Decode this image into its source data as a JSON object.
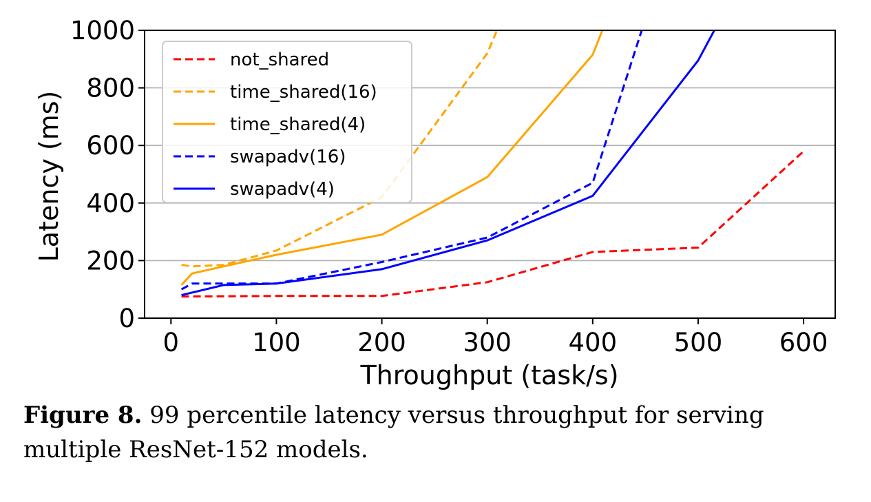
{
  "chart_data": {
    "type": "line",
    "xlabel": "Throughput (task/s)",
    "ylabel": "Latency (ms)",
    "xlim": [
      -25,
      630
    ],
    "ylim": [
      0,
      1000
    ],
    "xticks": [
      0,
      100,
      200,
      300,
      400,
      500,
      600
    ],
    "yticks": [
      0,
      200,
      400,
      600,
      800,
      1000
    ],
    "grid": "horizontal",
    "legend_position": "top-left",
    "series": [
      {
        "name": "not_shared",
        "color": "#ff0000",
        "dashed": true,
        "x": [
          10,
          100,
          200,
          300,
          400,
          500,
          600
        ],
        "y": [
          75,
          77,
          77,
          125,
          230,
          245,
          580
        ]
      },
      {
        "name": "time_shared(16)",
        "color": "#ffa500",
        "dashed": true,
        "x": [
          10,
          20,
          50,
          100,
          200,
          300,
          315
        ],
        "y": [
          185,
          180,
          185,
          235,
          420,
          920,
          1050
        ]
      },
      {
        "name": "time_shared(4)",
        "color": "#ffa500",
        "dashed": false,
        "x": [
          10,
          20,
          50,
          100,
          200,
          300,
          400,
          420
        ],
        "y": [
          115,
          155,
          180,
          220,
          290,
          490,
          915,
          1100
        ]
      },
      {
        "name": "swapadv(16)",
        "color": "#0000ff",
        "dashed": true,
        "x": [
          10,
          20,
          50,
          100,
          200,
          300,
          400,
          450
        ],
        "y": [
          100,
          120,
          120,
          120,
          195,
          280,
          470,
          1040
        ]
      },
      {
        "name": "swapadv(4)",
        "color": "#0000ff",
        "dashed": false,
        "x": [
          10,
          50,
          100,
          200,
          300,
          400,
          500,
          530
        ],
        "y": [
          80,
          115,
          120,
          170,
          270,
          425,
          895,
          1100
        ]
      }
    ]
  },
  "caption": {
    "label": "Figure 8.",
    "text": " 99 percentile latency versus throughput for serving multiple ResNet-152 models."
  }
}
